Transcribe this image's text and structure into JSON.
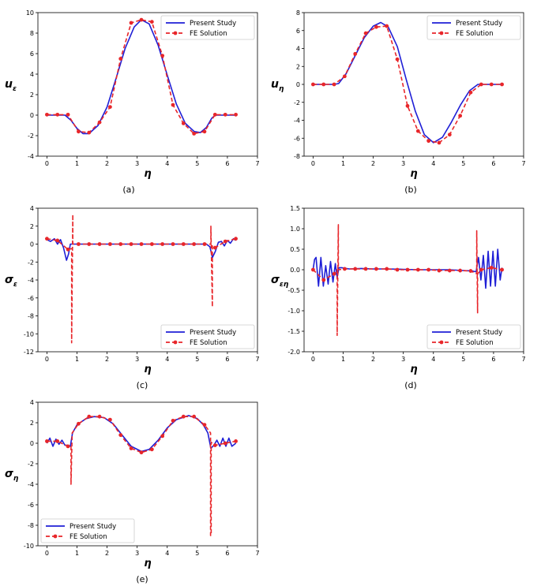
{
  "figure": {
    "legend_entries": [
      "Present Study",
      "FE Solution"
    ],
    "colors": {
      "present": "#1f1fd6",
      "fe": "#e8262a",
      "axis": "#000000"
    }
  },
  "chart_data": [
    {
      "id": "a",
      "caption": "(a)",
      "type": "line",
      "ylabel": "u",
      "ylabel_sub": "ε",
      "xlabel": "η",
      "xlim": [
        -0.3,
        7
      ],
      "ylim": [
        -4,
        10
      ],
      "xticks": [
        0,
        1,
        2,
        3,
        4,
        5,
        6,
        7
      ],
      "yticks": [
        -4,
        -2,
        0,
        2,
        4,
        6,
        8,
        10
      ],
      "legend": "top-right",
      "series": [
        {
          "name": "Present Study",
          "x": [
            0,
            0.4,
            0.6,
            0.8,
            1.0,
            1.2,
            1.4,
            1.7,
            2.0,
            2.3,
            2.6,
            2.9,
            3.14,
            3.4,
            3.7,
            4.0,
            4.3,
            4.6,
            4.9,
            5.1,
            5.3,
            5.48,
            5.6,
            6.0,
            6.28
          ],
          "y": [
            0,
            0,
            0,
            -0.5,
            -1.3,
            -1.8,
            -1.8,
            -1.0,
            0.8,
            3.6,
            6.5,
            8.6,
            9.3,
            8.9,
            6.8,
            3.9,
            1.1,
            -0.8,
            -1.6,
            -1.7,
            -1.2,
            -0.3,
            0,
            0,
            0
          ]
        },
        {
          "name": "FE Solution",
          "x": [
            0,
            0.35,
            0.7,
            1.05,
            1.4,
            1.75,
            2.1,
            2.45,
            2.8,
            3.14,
            3.49,
            3.84,
            4.19,
            4.54,
            4.89,
            5.24,
            5.59,
            5.93,
            6.28
          ],
          "y": [
            0.05,
            0.05,
            0.05,
            -1.6,
            -1.7,
            -0.7,
            0.8,
            5.5,
            9.0,
            9.3,
            9.1,
            5.8,
            1.0,
            -0.8,
            -1.8,
            -1.6,
            0.05,
            0.05,
            0.05
          ]
        }
      ]
    },
    {
      "id": "b",
      "caption": "(b)",
      "type": "line",
      "ylabel": "u",
      "ylabel_sub": "η",
      "xlabel": "η",
      "xlim": [
        -0.3,
        7
      ],
      "ylim": [
        -8,
        8
      ],
      "xticks": [
        0,
        1,
        2,
        3,
        4,
        5,
        6,
        7
      ],
      "yticks": [
        -8,
        -6,
        -4,
        -2,
        0,
        2,
        4,
        6,
        8
      ],
      "legend": "top-right",
      "series": [
        {
          "name": "Present Study",
          "x": [
            0,
            0.7,
            0.85,
            1.1,
            1.4,
            1.7,
            2.0,
            2.25,
            2.5,
            2.8,
            3.1,
            3.4,
            3.7,
            4.0,
            4.3,
            4.6,
            4.9,
            5.2,
            5.48,
            5.6,
            6.28
          ],
          "y": [
            0,
            0,
            0.1,
            1.2,
            3.2,
            5.2,
            6.5,
            6.9,
            6.4,
            4.2,
            0.5,
            -3.0,
            -5.6,
            -6.5,
            -5.9,
            -4.2,
            -2.3,
            -0.7,
            0,
            0,
            0
          ]
        },
        {
          "name": "FE Solution",
          "x": [
            0,
            0.35,
            0.7,
            1.05,
            1.4,
            1.75,
            2.1,
            2.45,
            2.8,
            3.14,
            3.49,
            3.84,
            4.19,
            4.54,
            4.89,
            5.24,
            5.59,
            5.93,
            6.28
          ],
          "y": [
            0,
            0,
            0,
            0.9,
            3.4,
            5.7,
            6.4,
            6.5,
            2.8,
            -2.4,
            -5.2,
            -6.3,
            -6.5,
            -5.6,
            -3.5,
            -0.9,
            0,
            0,
            0
          ]
        }
      ]
    },
    {
      "id": "c",
      "caption": "(c)",
      "type": "line",
      "ylabel": "σ",
      "ylabel_sub": "ε",
      "xlabel": "η",
      "xlim": [
        -0.3,
        7
      ],
      "ylim": [
        -12,
        4
      ],
      "xticks": [
        0,
        1,
        2,
        3,
        4,
        5,
        6,
        7
      ],
      "yticks": [
        -12,
        -10,
        -8,
        -6,
        -4,
        -2,
        0,
        2,
        4
      ],
      "legend": "bottom-right",
      "series": [
        {
          "name": "Present Study",
          "x": [
            0,
            0.12,
            0.25,
            0.35,
            0.45,
            0.55,
            0.65,
            0.72,
            0.78,
            0.85,
            1.0,
            2.0,
            3.0,
            4.0,
            5.0,
            5.3,
            5.42,
            5.5,
            5.6,
            5.7,
            5.8,
            5.9,
            6.0,
            6.1,
            6.2,
            6.28
          ],
          "y": [
            0.5,
            0.3,
            0.6,
            0.0,
            0.5,
            -0.4,
            -1.8,
            -1.1,
            0.0,
            0.0,
            0.0,
            0.0,
            0.0,
            0.0,
            0.0,
            0.0,
            -0.3,
            -1.5,
            -0.8,
            0.2,
            0.3,
            -0.2,
            0.4,
            0.1,
            0.6,
            0.4
          ]
        },
        {
          "name": "FE Solution",
          "x": [
            0,
            0.35,
            0.7,
            0.82,
            0.82,
            0.86,
            0.86,
            1.05,
            1.4,
            1.75,
            2.1,
            2.45,
            2.8,
            3.14,
            3.49,
            3.84,
            4.19,
            4.54,
            4.89,
            5.24,
            5.45,
            5.45,
            5.5,
            5.5,
            5.59,
            5.93,
            6.28
          ],
          "y": [
            0.6,
            0.4,
            -0.6,
            -0.5,
            -11.0,
            3.3,
            0.0,
            0.0,
            0.0,
            0.0,
            0.0,
            0.0,
            0.0,
            0.0,
            0.0,
            0.0,
            0.0,
            0.0,
            0.0,
            0.0,
            0.0,
            2.0,
            -7.0,
            -0.2,
            -0.4,
            0.3,
            0.6
          ]
        }
      ]
    },
    {
      "id": "d",
      "caption": "(d)",
      "type": "line",
      "ylabel": "σ",
      "ylabel_sub": "εη",
      "xlabel": "η",
      "xlim": [
        -0.3,
        7
      ],
      "ylim": [
        -2.0,
        1.5
      ],
      "xticks": [
        0,
        1,
        2,
        3,
        4,
        5,
        6,
        7
      ],
      "yticks": [
        -2.0,
        -1.5,
        -1.0,
        -0.5,
        0.0,
        0.5,
        1.0,
        1.5
      ],
      "legend": "bottom-right",
      "series": [
        {
          "name": "Present Study",
          "x": [
            0,
            0.05,
            0.1,
            0.18,
            0.26,
            0.34,
            0.42,
            0.5,
            0.58,
            0.66,
            0.74,
            0.8,
            0.86,
            0.95,
            1.2,
            1.6,
            2.0,
            2.5,
            3.0,
            3.5,
            4.0,
            4.5,
            5.0,
            5.3,
            5.42,
            5.5,
            5.58,
            5.66,
            5.74,
            5.82,
            5.9,
            5.98,
            6.06,
            6.14,
            6.22,
            6.28
          ],
          "y": [
            0.0,
            0.25,
            0.3,
            -0.4,
            0.3,
            -0.4,
            0.1,
            -0.35,
            0.2,
            -0.3,
            0.15,
            -0.2,
            0.05,
            0.05,
            0.02,
            0.03,
            0.02,
            0.02,
            0.01,
            0.0,
            0.0,
            0.0,
            -0.02,
            -0.03,
            -0.05,
            0.3,
            -0.25,
            0.35,
            -0.45,
            0.45,
            -0.4,
            0.45,
            -0.4,
            0.5,
            -0.25,
            0.05
          ]
        },
        {
          "name": "FE Solution",
          "x": [
            0,
            0.35,
            0.7,
            0.8,
            0.8,
            0.84,
            0.84,
            1.05,
            1.4,
            1.75,
            2.1,
            2.45,
            2.8,
            3.14,
            3.49,
            3.84,
            4.19,
            4.54,
            4.89,
            5.24,
            5.44,
            5.44,
            5.47,
            5.47,
            5.59,
            5.93,
            6.28
          ],
          "y": [
            0.0,
            -0.25,
            -0.1,
            0.0,
            -1.6,
            1.1,
            0.0,
            0.02,
            0.02,
            0.02,
            0.02,
            0.02,
            0.0,
            0.0,
            0.0,
            0.0,
            -0.02,
            -0.02,
            -0.02,
            -0.03,
            -0.1,
            0.95,
            -1.05,
            -0.1,
            0.0,
            0.05,
            0.0
          ]
        }
      ]
    },
    {
      "id": "e",
      "caption": "(e)",
      "type": "line",
      "ylabel": "σ",
      "ylabel_sub": "η",
      "xlabel": "η",
      "xlim": [
        -0.3,
        7
      ],
      "ylim": [
        -10,
        4
      ],
      "xticks": [
        0,
        1,
        2,
        3,
        4,
        5,
        6,
        7
      ],
      "yticks": [
        -10,
        -8,
        -6,
        -4,
        -2,
        0,
        2,
        4
      ],
      "legend": "bottom-left",
      "series": [
        {
          "name": "Present Study",
          "x": [
            0,
            0.1,
            0.2,
            0.3,
            0.4,
            0.5,
            0.6,
            0.7,
            0.78,
            0.85,
            1.0,
            1.3,
            1.57,
            1.9,
            2.2,
            2.5,
            2.8,
            3.14,
            3.4,
            3.7,
            4.0,
            4.3,
            4.71,
            5.0,
            5.2,
            5.35,
            5.45,
            5.55,
            5.65,
            5.75,
            5.85,
            5.95,
            6.05,
            6.15,
            6.28
          ],
          "y": [
            0,
            0.5,
            -0.3,
            0.4,
            -0.1,
            0.3,
            -0.2,
            -0.2,
            -0.3,
            1.0,
            1.8,
            2.4,
            2.6,
            2.5,
            1.9,
            0.8,
            -0.3,
            -0.8,
            -0.6,
            0.3,
            1.5,
            2.3,
            2.7,
            2.4,
            1.8,
            1.0,
            -0.5,
            -0.2,
            0.3,
            -0.3,
            0.5,
            -0.3,
            0.5,
            -0.3,
            0.0
          ]
        },
        {
          "name": "FE Solution",
          "x": [
            0,
            0.35,
            0.7,
            0.8,
            0.8,
            0.84,
            1.05,
            1.4,
            1.75,
            2.1,
            2.45,
            2.8,
            3.14,
            3.49,
            3.84,
            4.19,
            4.54,
            4.89,
            5.24,
            5.44,
            5.44,
            5.46,
            5.46,
            5.59,
            5.93,
            6.28
          ],
          "y": [
            0.2,
            0.2,
            -0.3,
            -0.3,
            -4.0,
            1.0,
            1.9,
            2.6,
            2.6,
            2.3,
            0.8,
            -0.5,
            -0.9,
            -0.6,
            0.7,
            2.2,
            2.6,
            2.6,
            1.8,
            1.0,
            -9.0,
            -9.0,
            0.1,
            -0.2,
            0.0,
            0.2
          ]
        }
      ]
    }
  ]
}
